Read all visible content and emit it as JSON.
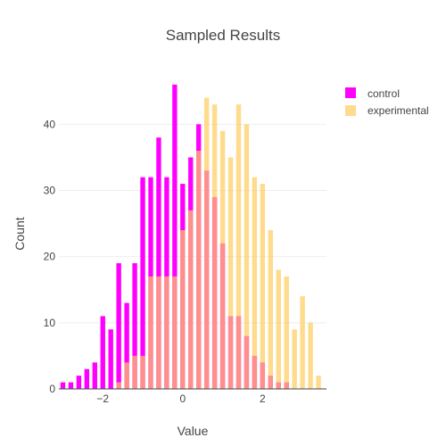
{
  "chart_data": {
    "type": "bar",
    "title": "Sampled Results",
    "xlabel": "Value",
    "ylabel": "Count",
    "barmode": "overlay",
    "bin_width": 0.2,
    "xlim": [
      -3.1,
      3.6
    ],
    "ylim": [
      0,
      48
    ],
    "xticks": [
      -2,
      0,
      2
    ],
    "xtick_labels": [
      "−2",
      "0",
      "2"
    ],
    "yticks": [
      0,
      10,
      20,
      30,
      40
    ],
    "grid": true,
    "legend_position": "top-right",
    "series": [
      {
        "name": "control",
        "color": "#ff00ff",
        "opacity": 1,
        "x": [
          -3.0,
          -2.8,
          -2.6,
          -2.4,
          -2.2,
          -2.0,
          -1.8,
          -1.6,
          -1.4,
          -1.2,
          -1.0,
          -0.8,
          -0.6,
          -0.4,
          -0.2,
          0.0,
          0.2,
          0.4,
          0.6,
          0.8,
          1.0,
          1.2,
          1.4,
          1.6,
          1.8,
          2.0,
          2.2,
          2.4,
          2.6
        ],
        "values": [
          1,
          1,
          2,
          3,
          4,
          11,
          9,
          19,
          13,
          19,
          32,
          32,
          38,
          32,
          46,
          31,
          35,
          40,
          33,
          29,
          22,
          11,
          11,
          8,
          5,
          4,
          2,
          1,
          1
        ]
      },
      {
        "name": "experimental",
        "color": "#fecc5c",
        "opacity": 0.7,
        "x": [
          -1.6,
          -1.4,
          -1.2,
          -1.0,
          -0.8,
          -0.6,
          -0.4,
          -0.2,
          0.0,
          0.2,
          0.4,
          0.6,
          0.8,
          1.0,
          1.2,
          1.4,
          1.6,
          1.8,
          2.0,
          2.2,
          2.4,
          2.6,
          2.8,
          3.0,
          3.2,
          3.4
        ],
        "values": [
          1,
          4,
          5,
          5,
          17,
          17,
          17,
          17,
          24,
          27,
          36,
          44,
          43,
          39,
          35,
          43,
          40,
          32,
          31,
          24,
          18,
          17,
          9,
          14,
          10,
          2
        ]
      }
    ]
  }
}
